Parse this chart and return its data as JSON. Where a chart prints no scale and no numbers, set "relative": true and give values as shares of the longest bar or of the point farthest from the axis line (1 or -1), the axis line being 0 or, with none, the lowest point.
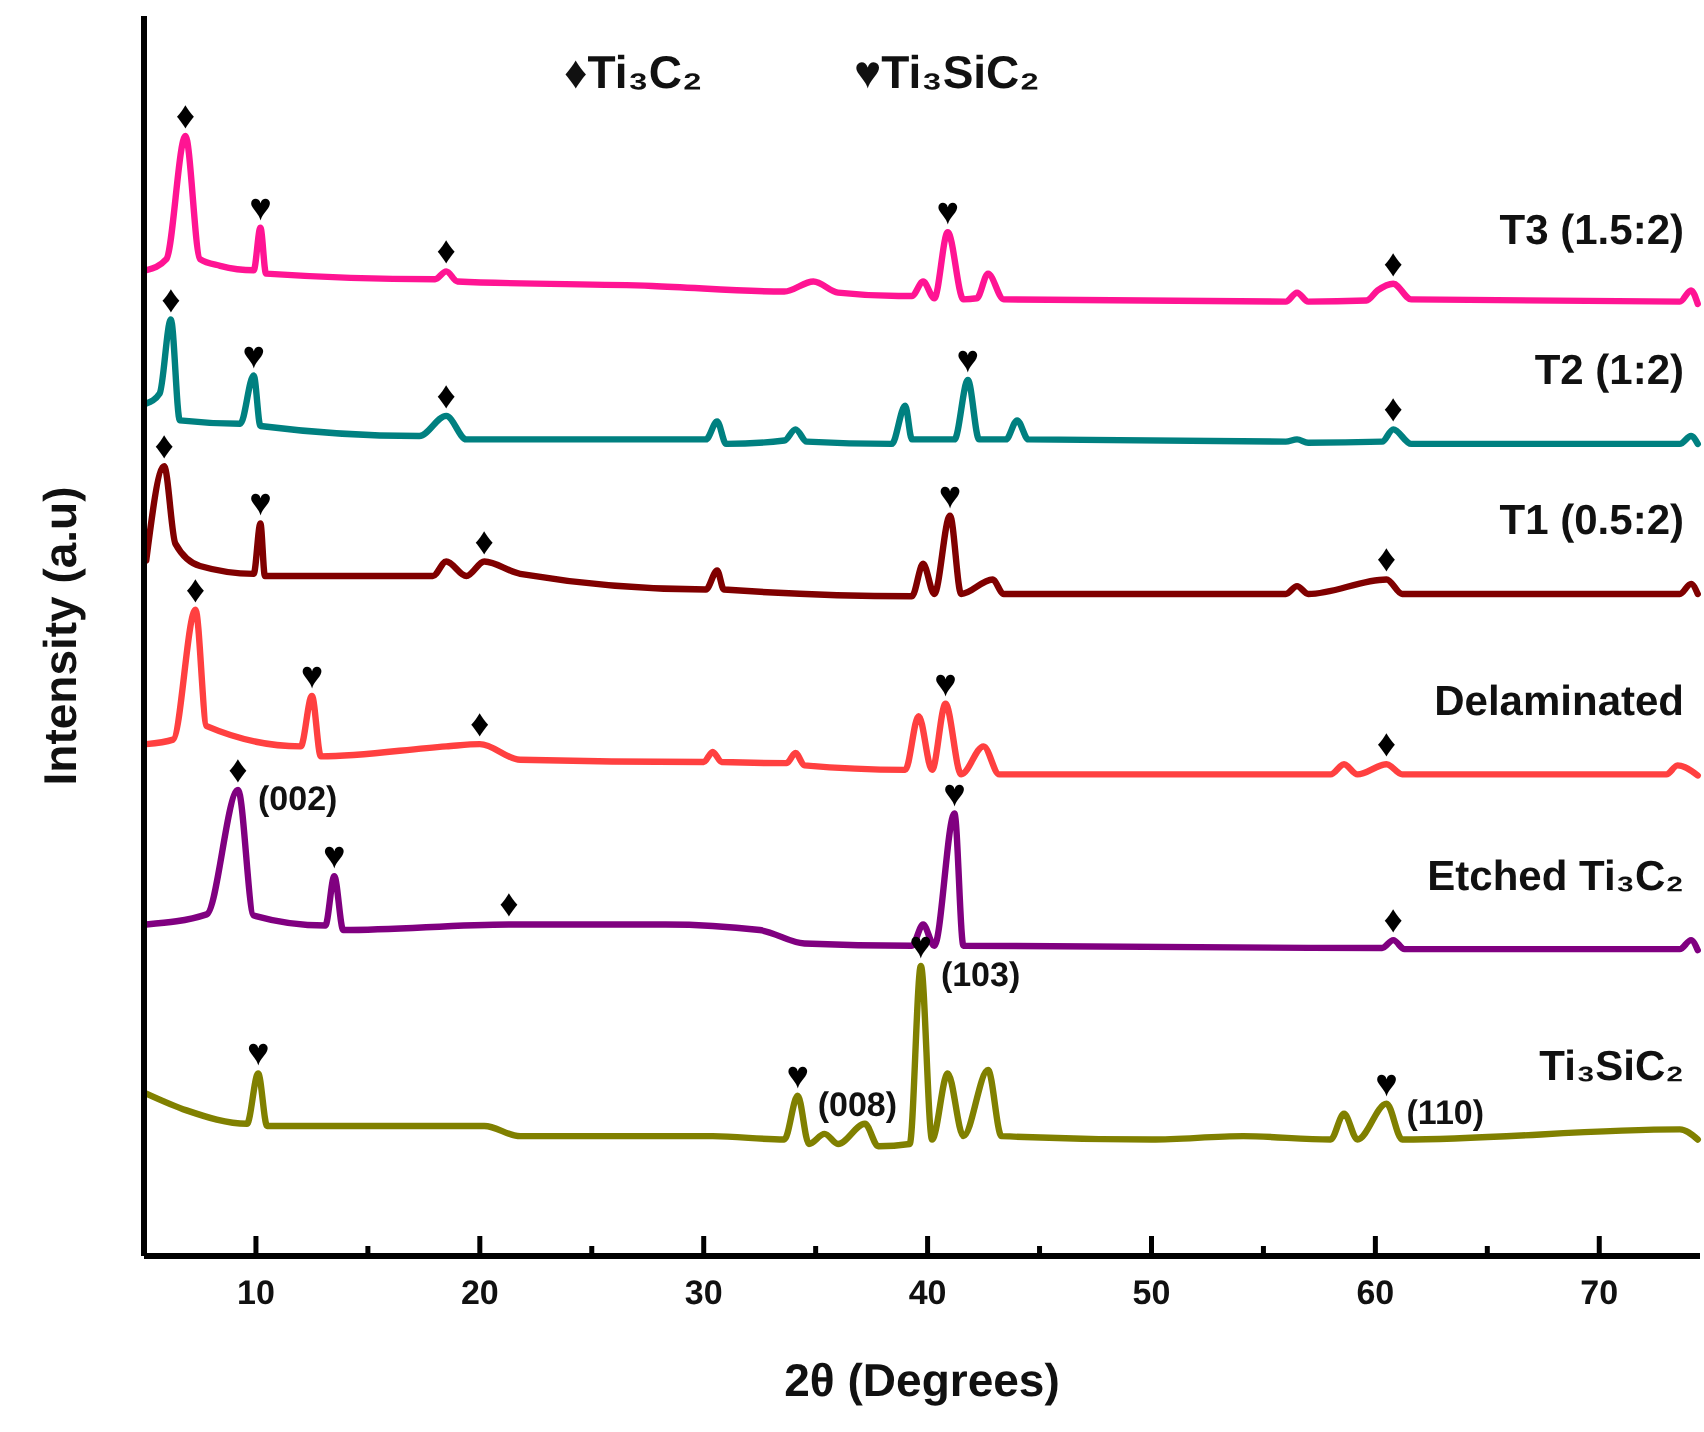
{
  "chart_data": {
    "type": "line",
    "relative": true,
    "xlabel": "2θ (Degrees)",
    "ylabel": "Intensity (a.u)",
    "xlim": [
      5,
      74.5
    ],
    "xticks": [
      10,
      {
        "value": 15,
        "label": null
      },
      20,
      {
        "value": 25,
        "label": null
      },
      30,
      {
        "value": 35,
        "label": null
      },
      40,
      {
        "value": 45,
        "label": null
      },
      50,
      {
        "value": 55,
        "label": null
      },
      60,
      {
        "value": 65,
        "label": null
      },
      70
    ],
    "tick_labels": "x",
    "grid": false,
    "marker": "none",
    "line_style": "solid",
    "series": [
      {
        "name": "T3 (1.5:2)",
        "color": "#ff1493",
        "x": [
          5.1,
          6.0,
          6.85,
          7.5,
          8.4,
          9.9,
          10.2,
          10.45,
          18.0,
          18.5,
          19.0,
          27.7,
          33.6,
          34.9,
          36.0,
          38.7,
          39.3,
          39.8,
          40.3,
          40.9,
          41.6,
          42.2,
          42.7,
          43.4,
          56.0,
          56.5,
          57.0,
          59.6,
          60.1,
          60.8,
          61.6,
          73.6,
          74.1,
          74.4
        ],
        "values": [
          0.88,
          0.89,
          1.0,
          0.89,
          0.884,
          0.88,
          0.918,
          0.877,
          0.872,
          0.879,
          0.87,
          0.866,
          0.861,
          0.87,
          0.86,
          0.857,
          0.857,
          0.87,
          0.855,
          0.914,
          0.854,
          0.855,
          0.877,
          0.854,
          0.852,
          0.86,
          0.852,
          0.853,
          0.862,
          0.868,
          0.854,
          0.852,
          0.862,
          0.85
        ]
      },
      {
        "name": "T2 (1:2)",
        "color": "#008080",
        "x": [
          5.1,
          5.7,
          6.2,
          6.6,
          9.3,
          9.9,
          10.2,
          17.3,
          18.5,
          19.4,
          30.1,
          30.6,
          31.0,
          33.6,
          34.1,
          34.6,
          38.4,
          39.0,
          39.3,
          41.2,
          41.8,
          42.3,
          43.5,
          44.0,
          44.5,
          56.0,
          56.5,
          57.0,
          60.3,
          60.8,
          61.6,
          73.6,
          74.1,
          74.4
        ],
        "values": [
          0.761,
          0.77,
          0.836,
          0.746,
          0.743,
          0.786,
          0.741,
          0.732,
          0.75,
          0.729,
          0.729,
          0.745,
          0.725,
          0.728,
          0.738,
          0.727,
          0.725,
          0.759,
          0.729,
          0.729,
          0.782,
          0.729,
          0.729,
          0.746,
          0.729,
          0.727,
          0.729,
          0.726,
          0.727,
          0.738,
          0.725,
          0.725,
          0.732,
          0.725
        ]
      },
      {
        "name": "T1 (0.5:2)",
        "color": "#800000",
        "x": [
          5.1,
          5.9,
          6.4,
          7.5,
          9.9,
          10.2,
          10.4,
          17.9,
          18.5,
          19.4,
          20.2,
          21.8,
          30.1,
          30.6,
          30.9,
          39.3,
          39.8,
          40.3,
          41.0,
          41.5,
          42.9,
          43.4,
          56.0,
          56.5,
          57.0,
          60.5,
          61.2,
          73.6,
          74.1,
          74.4
        ],
        "values": [
          0.621,
          0.705,
          0.636,
          0.616,
          0.609,
          0.654,
          0.607,
          0.607,
          0.62,
          0.607,
          0.62,
          0.609,
          0.595,
          0.612,
          0.595,
          0.589,
          0.618,
          0.591,
          0.661,
          0.591,
          0.604,
          0.591,
          0.591,
          0.598,
          0.591,
          0.604,
          0.591,
          0.591,
          0.6,
          0.591
        ]
      },
      {
        "name": "Delaminated",
        "color": "#ff4040",
        "x": [
          5.1,
          6.3,
          7.3,
          7.8,
          12.0,
          12.5,
          12.9,
          18.5,
          20.0,
          21.8,
          30.0,
          30.4,
          30.8,
          33.7,
          34.1,
          34.5,
          39.0,
          39.6,
          40.2,
          40.8,
          41.5,
          42.5,
          43.2,
          58.0,
          58.6,
          59.2,
          60.5,
          61.2,
          73.0,
          73.5,
          74.4
        ],
        "values": [
          0.457,
          0.461,
          0.577,
          0.473,
          0.455,
          0.5,
          0.446,
          0.455,
          0.457,
          0.443,
          0.441,
          0.45,
          0.441,
          0.44,
          0.449,
          0.438,
          0.434,
          0.482,
          0.434,
          0.493,
          0.43,
          0.455,
          0.43,
          0.43,
          0.439,
          0.43,
          0.439,
          0.43,
          0.43,
          0.438,
          0.429
        ]
      },
      {
        "name": "Etched Ti₃C₂",
        "color": "#800080",
        "x": [
          5.1,
          7.8,
          9.2,
          9.9,
          13.1,
          13.5,
          13.9,
          21.3,
          28.3,
          32.5,
          34.5,
          39.3,
          39.8,
          40.3,
          41.2,
          41.6,
          60.3,
          60.8,
          61.3,
          73.6,
          74.1,
          74.4
        ],
        "values": [
          0.296,
          0.305,
          0.416,
          0.304,
          0.295,
          0.339,
          0.291,
          0.296,
          0.296,
          0.291,
          0.279,
          0.277,
          0.296,
          0.277,
          0.395,
          0.277,
          0.275,
          0.282,
          0.274,
          0.274,
          0.282,
          0.273
        ]
      },
      {
        "name": "Ti₃SiC₂",
        "color": "#808000",
        "x": [
          5.1,
          6.9,
          9.6,
          10.1,
          10.5,
          20.2,
          21.8,
          30.4,
          33.6,
          34.2,
          34.7,
          35.4,
          36.0,
          37.2,
          37.8,
          39.2,
          39.7,
          40.2,
          40.9,
          41.6,
          42.7,
          43.3,
          50.0,
          54.1,
          58.0,
          58.6,
          59.2,
          60.5,
          61.2,
          73.6,
          74.4
        ],
        "values": [
          0.145,
          0.13,
          0.118,
          0.163,
          0.116,
          0.116,
          0.107,
          0.107,
          0.104,
          0.143,
          0.1,
          0.109,
          0.1,
          0.118,
          0.098,
          0.1,
          0.259,
          0.104,
          0.163,
          0.107,
          0.166,
          0.107,
          0.104,
          0.107,
          0.104,
          0.127,
          0.104,
          0.136,
          0.104,
          0.113,
          0.104
        ]
      }
    ],
    "annotations": [
      "♦Ti₃C₂",
      "♥Ti₃SiC₂",
      {
        "text": "♦",
        "x": 6.85,
        "y": 1.0
      },
      {
        "text": "♥",
        "x": 10.2,
        "y": 0.918
      },
      {
        "text": "♦",
        "x": 18.5,
        "y": 0.879
      },
      {
        "text": "♥",
        "x": 40.9,
        "y": 0.914
      },
      {
        "text": "♦",
        "x": 60.8,
        "y": 0.868
      },
      {
        "text": "♦",
        "x": 6.2,
        "y": 0.836
      },
      {
        "text": "♥",
        "x": 9.9,
        "y": 0.786
      },
      {
        "text": "♦",
        "x": 18.5,
        "y": 0.75
      },
      {
        "text": "♥",
        "x": 41.8,
        "y": 0.782
      },
      {
        "text": "♦",
        "x": 60.8,
        "y": 0.738
      },
      {
        "text": "♦",
        "x": 5.9,
        "y": 0.705
      },
      {
        "text": "♥",
        "x": 10.2,
        "y": 0.654
      },
      {
        "text": "♦",
        "x": 20.2,
        "y": 0.62
      },
      {
        "text": "♥",
        "x": 41.0,
        "y": 0.661
      },
      {
        "text": "♦",
        "x": 60.5,
        "y": 0.604
      },
      {
        "text": "♦",
        "x": 7.3,
        "y": 0.577
      },
      {
        "text": "♥",
        "x": 12.5,
        "y": 0.5
      },
      {
        "text": "♦",
        "x": 20.0,
        "y": 0.457
      },
      {
        "text": "♥",
        "x": 40.8,
        "y": 0.493
      },
      {
        "text": "♦",
        "x": 60.5,
        "y": 0.439
      },
      {
        "text": "♦",
        "x": 9.2,
        "y": 0.416
      },
      {
        "text": "(002)",
        "x": 9.2,
        "y": 0.416
      },
      {
        "text": "♥",
        "x": 13.5,
        "y": 0.339
      },
      {
        "text": "♦",
        "x": 21.3,
        "y": 0.296
      },
      {
        "text": "♥",
        "x": 41.2,
        "y": 0.395
      },
      {
        "text": "♦",
        "x": 60.8,
        "y": 0.282
      },
      {
        "text": "♥",
        "x": 10.1,
        "y": 0.163
      },
      {
        "text": "♥",
        "x": 34.2,
        "y": 0.143
      },
      {
        "text": "(008)",
        "x": 34.2,
        "y": 0.143
      },
      {
        "text": "♥",
        "x": 39.7,
        "y": 0.259
      },
      {
        "text": "(103)",
        "x": 39.7,
        "y": 0.259
      },
      {
        "text": "♥",
        "x": 60.5,
        "y": 0.136
      },
      {
        "text": "(110)",
        "x": 60.5,
        "y": 0.136
      }
    ]
  }
}
